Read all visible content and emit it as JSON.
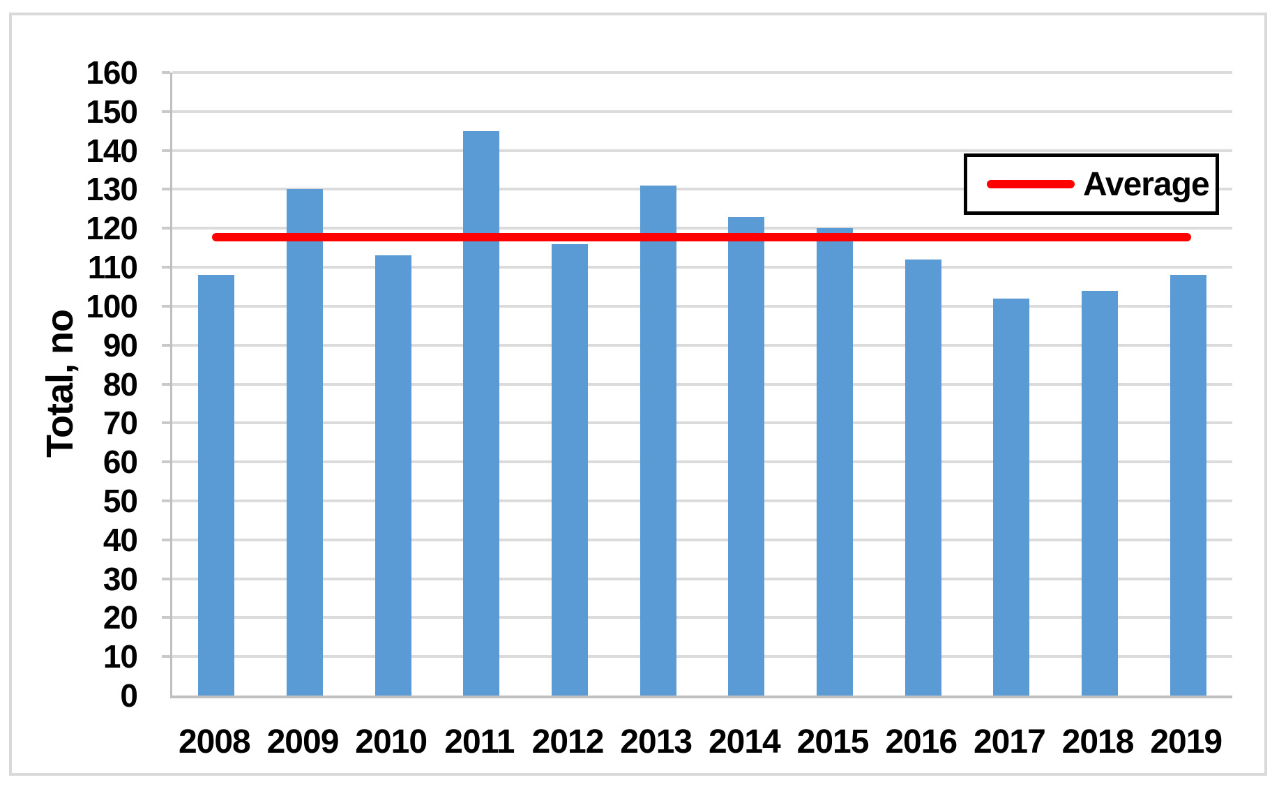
{
  "chart_data": {
    "type": "bar",
    "title": "",
    "categories": [
      "2008",
      "2009",
      "2010",
      "2011",
      "2012",
      "2013",
      "2014",
      "2015",
      "2016",
      "2017",
      "2018",
      "2019"
    ],
    "series": [
      {
        "name": "Total",
        "role": "bars",
        "color": "#5B9BD5",
        "values": [
          108,
          130,
          113,
          145,
          116,
          131,
          123,
          120,
          112,
          102,
          104,
          108
        ]
      },
      {
        "name": "Average",
        "role": "horizontal-line",
        "color": "#FF0000",
        "value": 117.7
      }
    ],
    "xlabel": "",
    "ylabel": "Total, no",
    "ylim": [
      0,
      160
    ],
    "yticks": [
      0,
      10,
      20,
      30,
      40,
      50,
      60,
      70,
      80,
      90,
      100,
      110,
      120,
      130,
      140,
      150,
      160
    ],
    "grid": "horizontal",
    "legend": {
      "position": "top-right",
      "entries": [
        "Average"
      ]
    }
  },
  "colors": {
    "bar": "#5B9BD5",
    "average_line": "#FF0000",
    "gridline": "#DBDBDB",
    "tick": "#C9C9C9",
    "axis": "#BFBFBF",
    "figure_border": "#D9D9D9",
    "text": "#000000",
    "legend_border": "#000000"
  }
}
